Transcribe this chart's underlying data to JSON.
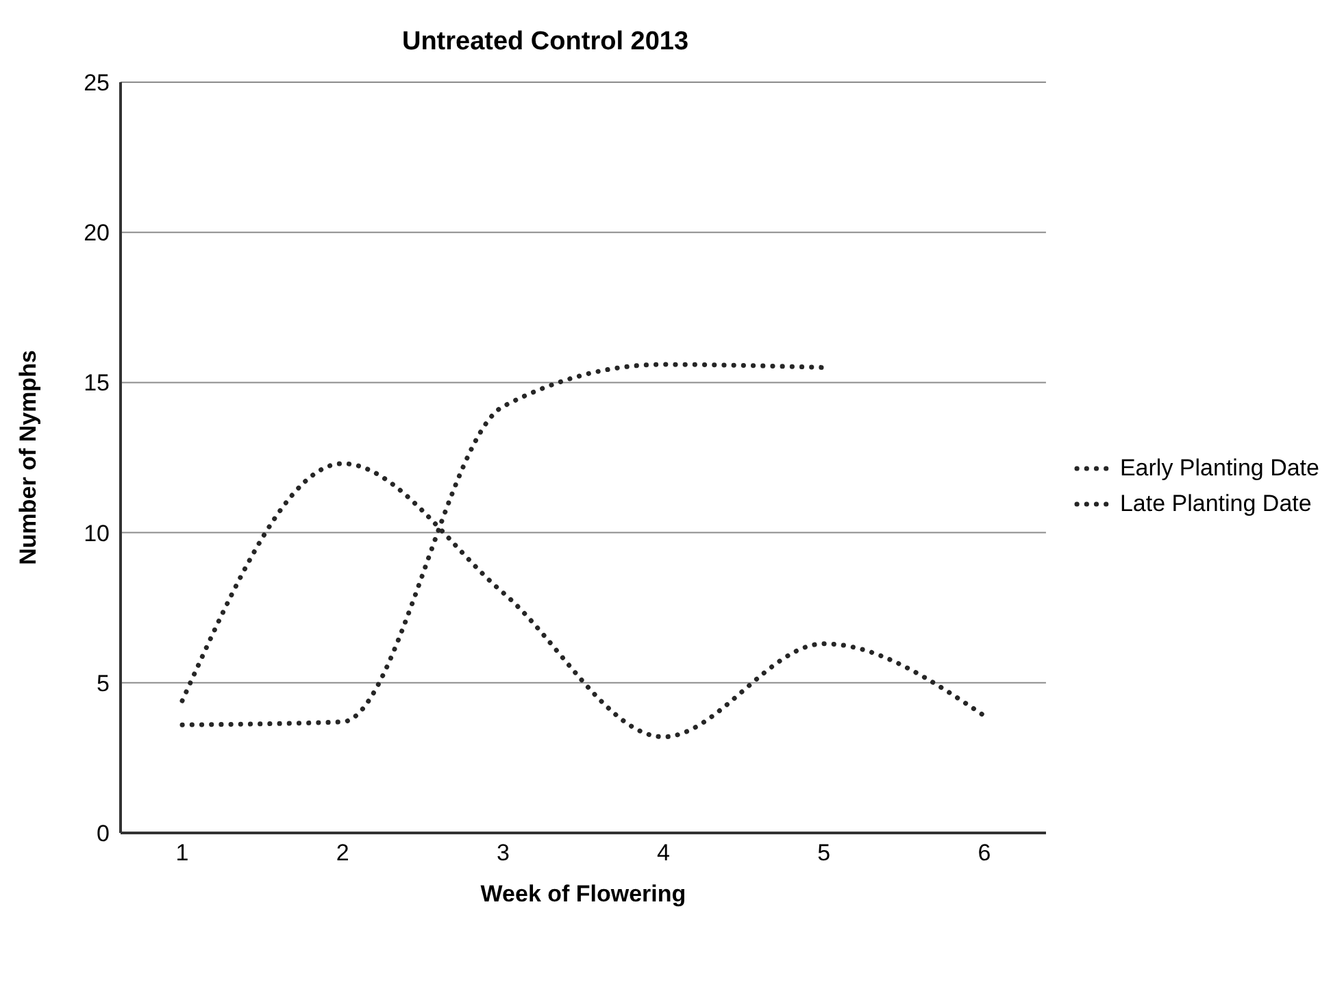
{
  "chart_data": {
    "type": "line",
    "title": "Untreated Control 2013",
    "xlabel": "Week of Flowering",
    "ylabel": "Number of Nymphs",
    "categories": [
      "1",
      "2",
      "3",
      "4",
      "5",
      "6"
    ],
    "series": [
      {
        "name": "Early Planting Date",
        "color": "#262626",
        "line_style": "dotted",
        "values": [
          4.4,
          12.3,
          8.0,
          3.2,
          6.3,
          3.9
        ]
      },
      {
        "name": "Late Planting Date",
        "color": "#262626",
        "line_style": "dotted",
        "values": [
          3.6,
          3.7,
          14.2,
          15.6,
          15.5,
          null
        ]
      }
    ],
    "ylim": [
      0,
      25
    ],
    "yticks": [
      0,
      5,
      10,
      15,
      20,
      25
    ],
    "grid": "y",
    "legend": "right",
    "marker": "none"
  }
}
